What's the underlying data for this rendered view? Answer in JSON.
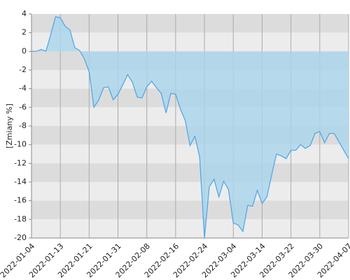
{
  "chart_data": {
    "type": "area",
    "y_label": "[Zmiany %]",
    "x": [
      "2022-01-04",
      "2022-01-05",
      "2022-01-07",
      "2022-01-10",
      "2022-01-11",
      "2022-01-12",
      "2022-01-13",
      "2022-01-14",
      "2022-01-17",
      "2022-01-18",
      "2022-01-19",
      "2022-01-20",
      "2022-01-21",
      "2022-01-24",
      "2022-01-25",
      "2022-01-26",
      "2022-01-27",
      "2022-01-28",
      "2022-01-31",
      "2022-02-01",
      "2022-02-02",
      "2022-02-03",
      "2022-02-04",
      "2022-02-07",
      "2022-02-08",
      "2022-02-09",
      "2022-02-10",
      "2022-02-11",
      "2022-02-14",
      "2022-02-15",
      "2022-02-16",
      "2022-02-17",
      "2022-02-18",
      "2022-02-21",
      "2022-02-22",
      "2022-02-23",
      "2022-02-24",
      "2022-02-25",
      "2022-02-28",
      "2022-03-01",
      "2022-03-02",
      "2022-03-03",
      "2022-03-04",
      "2022-03-07",
      "2022-03-08",
      "2022-03-09",
      "2022-03-10",
      "2022-03-11",
      "2022-03-14",
      "2022-03-15",
      "2022-03-16",
      "2022-03-17",
      "2022-03-18",
      "2022-03-21",
      "2022-03-22",
      "2022-03-23",
      "2022-03-24",
      "2022-03-25",
      "2022-03-28",
      "2022-03-29",
      "2022-03-30",
      "2022-03-31",
      "2022-04-01",
      "2022-04-04",
      "2022-04-05",
      "2022-04-06",
      "2022-04-07"
    ],
    "values": [
      0,
      0,
      0.2,
      0,
      1.8,
      3.7,
      3.6,
      2.7,
      2.3,
      0.4,
      0.1,
      -0.8,
      -2.2,
      -6.0,
      -5.2,
      -3.9,
      -3.8,
      -5.2,
      -4.6,
      -3.6,
      -2.5,
      -3.3,
      -4.9,
      -5.0,
      -3.8,
      -3.2,
      -3.9,
      -4.5,
      -6.6,
      -4.5,
      -4.6,
      -6.2,
      -7.4,
      -10.1,
      -9.1,
      -11.3,
      -20,
      -14.5,
      -13.7,
      -15.6,
      -13.9,
      -14.8,
      -18.4,
      -18.6,
      -19.3,
      -16.5,
      -16.6,
      -14.9,
      -16.3,
      -15.6,
      -13.2,
      -11.0,
      -11.2,
      -11.5,
      -10.6,
      -10.6,
      -10.0,
      -10.4,
      -10.1,
      -8.8,
      -8.6,
      -9.8,
      -8.8,
      -8.8,
      -9.7,
      -10.6,
      -11.5
    ],
    "line_color": "#4da3e6",
    "fill_color": "#a9d6ec",
    "ylim": [
      -20,
      4
    ],
    "yticks": [
      4,
      2,
      0,
      -2,
      -4,
      -6,
      -8,
      -10,
      -12,
      -14,
      -16,
      -18,
      -20
    ],
    "xticks": [
      "2022-01-04",
      "2022-01-13",
      "2022-01-21",
      "2022-01-31",
      "2022-02-08",
      "2022-02-16",
      "2022-02-24",
      "2022-03-04",
      "2022-03-14",
      "2022-03-22",
      "2022-03-30",
      "2022-04-07"
    ],
    "band_colors": [
      "#dcdcdc",
      "#ececec"
    ],
    "grid": true
  }
}
